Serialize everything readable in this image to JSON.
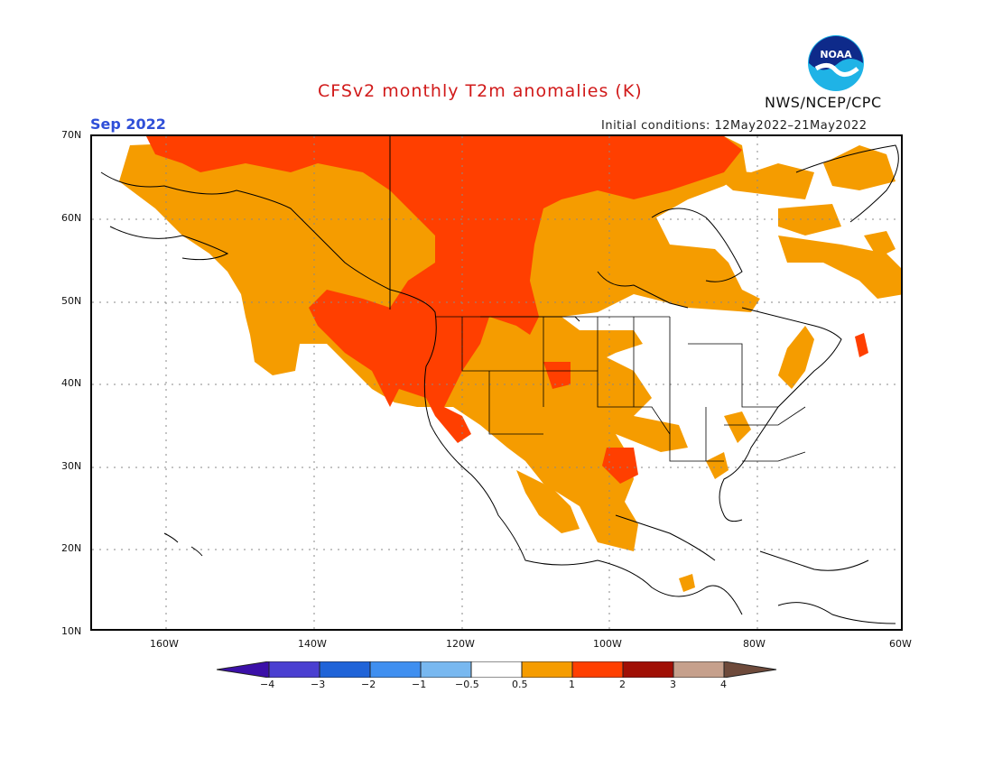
{
  "header": {
    "title": "CFSv2 monthly T2m anomalies (K)",
    "month": "Sep 2022",
    "initial_conditions": "Initial conditions: 12May2022–21May2022",
    "agency": "NWS/NCEP/CPC",
    "logo_text": "NOAA"
  },
  "map": {
    "lat_labels": [
      "70N",
      "60N",
      "50N",
      "40N",
      "30N",
      "20N",
      "10N"
    ],
    "lon_labels": [
      "160W",
      "140W",
      "120W",
      "100W",
      "80W",
      "60W"
    ],
    "extent": {
      "lon": [
        -170,
        -60
      ],
      "lat": [
        10,
        70
      ]
    },
    "grid": "dotted"
  },
  "colorbar": {
    "labels": [
      "−4",
      "−3",
      "−2",
      "−1",
      "−0.5",
      "0.5",
      "1",
      "2",
      "3",
      "4"
    ],
    "colors": {
      "below_minus4": "#3b10a8",
      "minus4_minus3": "#4a3fd1",
      "minus3_minus2": "#1f63d8",
      "minus2_minus1": "#3f8ff0",
      "minus1_minus05": "#78b8f0",
      "neutral": "#ffffff",
      "p05_1": "#f59c00",
      "p1_2": "#ff3f00",
      "p2_3": "#a00f05",
      "p3_4": "#c6a08c",
      "above4": "#6e4a3b"
    }
  }
}
